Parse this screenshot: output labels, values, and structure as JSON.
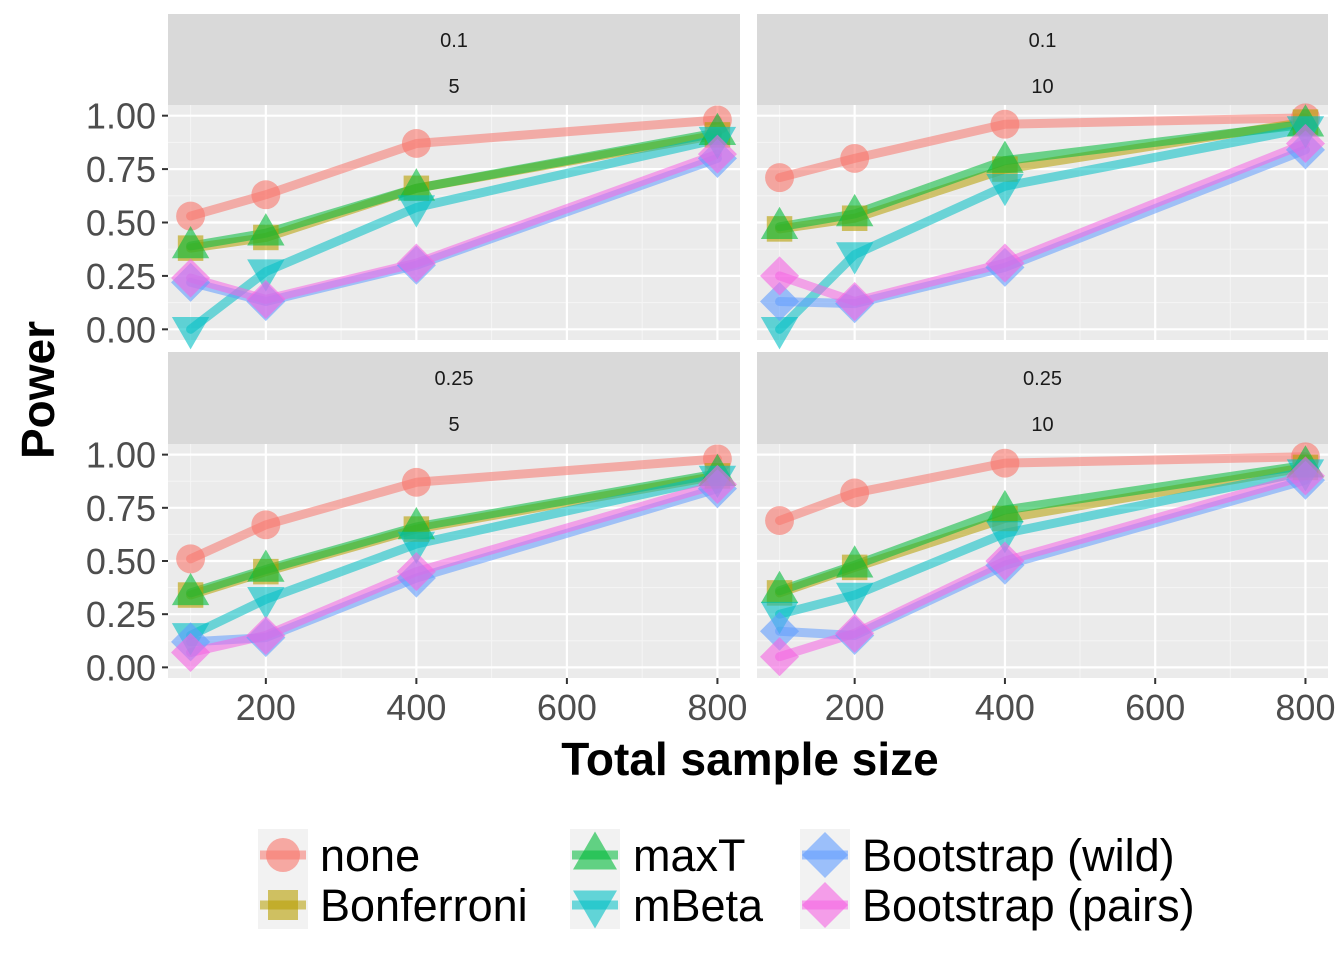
{
  "chart_data": {
    "type": "line",
    "xlabel": "Total sample size",
    "ylabel": "Power",
    "x": [
      100,
      200,
      400,
      800
    ],
    "x_ticks": [
      200,
      400,
      600,
      800
    ],
    "x_tick_labels": [
      "200",
      "400",
      "600",
      "800"
    ],
    "xlim": [
      70,
      830
    ],
    "y_ticks": [
      0,
      0.25,
      0.5,
      0.75,
      1.0
    ],
    "y_tick_labels": [
      "0.00",
      "0.25",
      "0.50",
      "0.75",
      "1.00"
    ],
    "ylim": [
      -0.05,
      1.05
    ],
    "grid": true,
    "legend_position": "bottom",
    "methods": [
      {
        "key": "none",
        "label": "none",
        "color": "#F8766D",
        "shape": "circle"
      },
      {
        "key": "bonferroni",
        "label": "Bonferroni",
        "color": "#B79F00",
        "shape": "square"
      },
      {
        "key": "maxT",
        "label": "maxT",
        "color": "#00BA38",
        "shape": "triangle-up"
      },
      {
        "key": "mBeta",
        "label": "mBeta",
        "color": "#00BFC4",
        "shape": "triangle-down"
      },
      {
        "key": "boot_wild",
        "label": "Bootstrap (wild)",
        "color": "#619CFF",
        "shape": "diamond"
      },
      {
        "key": "boot_pairs",
        "label": "Bootstrap (pairs)",
        "color": "#F564E3",
        "shape": "diamond"
      }
    ],
    "panels": [
      {
        "strip": [
          "0.1",
          "5"
        ],
        "series": {
          "none": [
            0.53,
            0.63,
            0.87,
            0.98
          ],
          "bonferroni": [
            0.38,
            0.43,
            0.66,
            0.91
          ],
          "maxT": [
            0.39,
            0.45,
            0.66,
            0.92
          ],
          "mBeta": [
            0.0,
            0.27,
            0.57,
            0.89
          ],
          "boot_wild": [
            0.22,
            0.13,
            0.3,
            0.8
          ],
          "boot_pairs": [
            0.24,
            0.14,
            0.31,
            0.82
          ]
        }
      },
      {
        "strip": [
          "0.1",
          "10"
        ],
        "series": {
          "none": [
            0.71,
            0.8,
            0.96,
            0.99
          ],
          "bonferroni": [
            0.47,
            0.52,
            0.75,
            0.97
          ],
          "maxT": [
            0.48,
            0.54,
            0.79,
            0.96
          ],
          "mBeta": [
            0.0,
            0.35,
            0.67,
            0.94
          ],
          "boot_wild": [
            0.13,
            0.12,
            0.29,
            0.84
          ],
          "boot_pairs": [
            0.25,
            0.13,
            0.31,
            0.87
          ]
        }
      },
      {
        "strip": [
          "0.25",
          "5"
        ],
        "series": {
          "none": [
            0.51,
            0.67,
            0.87,
            0.98
          ],
          "bonferroni": [
            0.34,
            0.45,
            0.65,
            0.9
          ],
          "maxT": [
            0.35,
            0.46,
            0.66,
            0.91
          ],
          "mBeta": [
            0.15,
            0.32,
            0.58,
            0.89
          ],
          "boot_wild": [
            0.12,
            0.14,
            0.42,
            0.84
          ],
          "boot_pairs": [
            0.07,
            0.15,
            0.45,
            0.86
          ]
        }
      },
      {
        "strip": [
          "0.25",
          "10"
        ],
        "series": {
          "none": [
            0.69,
            0.82,
            0.96,
            0.99
          ],
          "bonferroni": [
            0.35,
            0.47,
            0.7,
            0.94
          ],
          "maxT": [
            0.36,
            0.48,
            0.74,
            0.95
          ],
          "mBeta": [
            0.25,
            0.34,
            0.63,
            0.92
          ],
          "boot_wild": [
            0.17,
            0.15,
            0.48,
            0.88
          ],
          "boot_pairs": [
            0.05,
            0.16,
            0.5,
            0.9
          ]
        }
      }
    ]
  }
}
